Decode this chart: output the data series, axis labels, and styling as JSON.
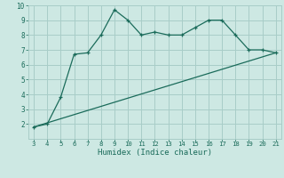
{
  "line1_x": [
    3,
    4,
    5,
    6,
    7,
    8,
    9,
    10,
    11,
    12,
    13,
    14,
    15,
    16,
    17,
    18,
    19,
    20,
    21
  ],
  "line1_y": [
    1.8,
    2.0,
    3.8,
    6.7,
    6.8,
    8.0,
    9.7,
    9.0,
    8.0,
    8.2,
    8.0,
    8.0,
    8.5,
    9.0,
    9.0,
    8.0,
    7.0,
    7.0,
    6.8
  ],
  "line2_x": [
    3,
    21
  ],
  "line2_y": [
    1.8,
    6.8
  ],
  "line_color": "#1a6b5a",
  "bg_color": "#cde8e3",
  "grid_color": "#a8cdc8",
  "xlabel": "Humidex (Indice chaleur)",
  "xlim": [
    3,
    21
  ],
  "ylim": [
    1,
    10
  ],
  "xticks": [
    3,
    4,
    5,
    6,
    7,
    8,
    9,
    10,
    11,
    12,
    13,
    14,
    15,
    16,
    17,
    18,
    19,
    20,
    21
  ],
  "yticks": [
    2,
    3,
    4,
    5,
    6,
    7,
    8,
    9,
    10
  ],
  "marker": "+"
}
